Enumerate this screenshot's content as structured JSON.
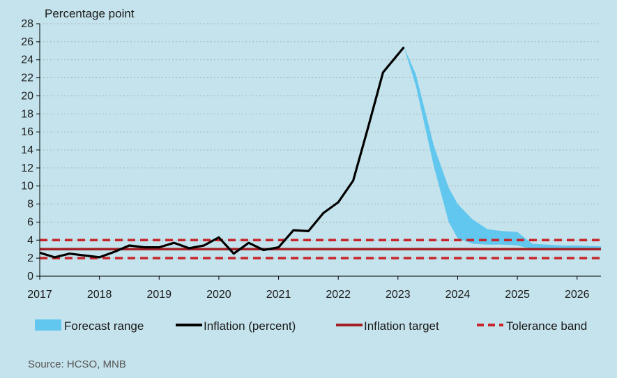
{
  "chart_data": {
    "type": "line",
    "ylabel": "Percentage point",
    "ylim": [
      0,
      28
    ],
    "yticks": [
      0,
      2,
      4,
      6,
      8,
      10,
      12,
      14,
      16,
      18,
      20,
      22,
      24,
      26,
      28
    ],
    "xlim": [
      2017,
      2026.4
    ],
    "xticks": [
      "2017",
      "2018",
      "2019",
      "2020",
      "2021",
      "2022",
      "2023",
      "2024",
      "2025",
      "2026"
    ],
    "grid": "horizontal dotted",
    "legend_position": "bottom",
    "source": "Source: HCSO, MNB",
    "colors": {
      "background": "#c5e3ec",
      "inflation": "#000000",
      "target": "#a31f24",
      "tolerance": "#c8242b",
      "forecast": "#62c7ee",
      "grid": "#9aa6ab"
    },
    "legend": {
      "forecast": "Forecast range",
      "inflation": "Inflation (percent)",
      "target": "Inflation target",
      "tolerance": "Tolerance band"
    },
    "series": [
      {
        "name": "Inflation (percent)",
        "x": [
          2017.0,
          2017.25,
          2017.5,
          2017.75,
          2018.0,
          2018.25,
          2018.5,
          2018.75,
          2019.0,
          2019.25,
          2019.5,
          2019.75,
          2020.0,
          2020.25,
          2020.5,
          2020.75,
          2021.0,
          2021.25,
          2021.5,
          2021.75,
          2022.0,
          2022.25,
          2022.5,
          2022.75,
          2023.1
        ],
        "y": [
          2.6,
          2.1,
          2.5,
          2.3,
          2.1,
          2.7,
          3.4,
          3.2,
          3.2,
          3.7,
          3.1,
          3.4,
          4.3,
          2.5,
          3.7,
          2.9,
          3.2,
          5.1,
          5.0,
          7.0,
          8.2,
          10.6,
          16.5,
          22.6,
          25.4
        ]
      },
      {
        "name": "Inflation target",
        "x": [
          2017.0,
          2026.4
        ],
        "y": [
          3,
          3
        ]
      },
      {
        "name": "Tolerance band",
        "upper": 4,
        "lower": 2,
        "x": [
          2017.0,
          2026.4
        ]
      },
      {
        "name": "Forecast range",
        "x": [
          2023.1,
          2023.3,
          2023.6,
          2023.85,
          2024.0,
          2024.25,
          2024.5,
          2024.75,
          2025.0,
          2025.25,
          2025.5,
          2025.75,
          2026.0,
          2026.4
        ],
        "upper": [
          25.4,
          22.4,
          14.5,
          9.8,
          8.0,
          6.3,
          5.2,
          5.0,
          4.9,
          3.6,
          3.5,
          3.4,
          3.4,
          3.3
        ],
        "lower": [
          25.4,
          21.1,
          12.2,
          6.0,
          4.2,
          3.6,
          3.5,
          3.5,
          3.4,
          3.0,
          2.9,
          2.9,
          2.9,
          2.9
        ]
      }
    ]
  }
}
